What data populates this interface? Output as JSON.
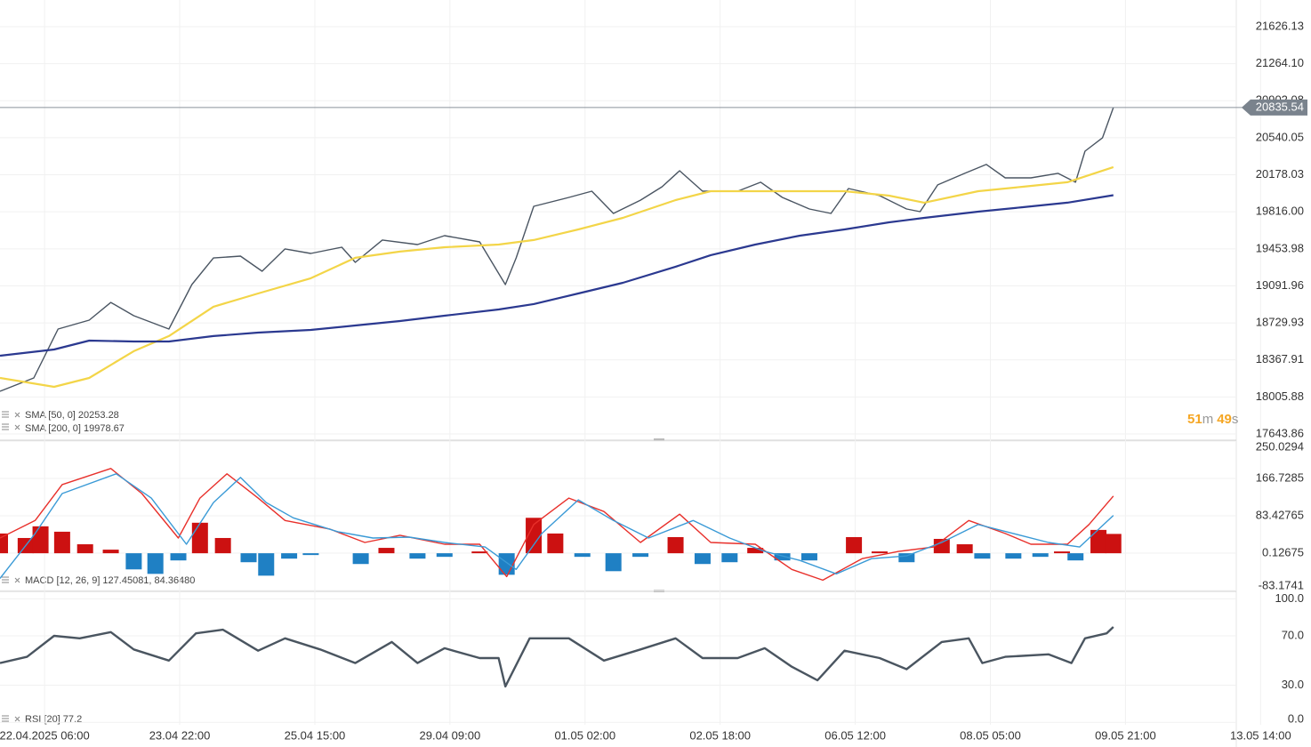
{
  "chart_data": [
    {
      "type": "line",
      "ylim": [
        17583,
        21887
      ],
      "yticks": [
        21626.13,
        {
          "value": 21264.1,
          "label": "21264.10"
        },
        20902.08,
        20540.05,
        20178.03,
        {
          "value": 19816,
          "label": "19816.00"
        },
        19453.98,
        19091.96,
        18729.93,
        18367.91,
        18005.88,
        17643.86
      ],
      "last_value": 20835.54,
      "legend": [
        "SMA [50, 0] 20253.28",
        "SMA [200, 0] 19978.67"
      ],
      "timer": [
        "51",
        "m",
        "49",
        "s"
      ],
      "series": [
        {
          "color": "#4a5562",
          "x": [
            -0.33,
            -0.08,
            0.1,
            0.33,
            0.49,
            0.66,
            0.92,
            1.09,
            1.25,
            1.45,
            1.61,
            1.78,
            1.97,
            2.2,
            2.3,
            2.5,
            2.76,
            2.96,
            3.22,
            3.41,
            3.49,
            3.62,
            3.88,
            4.05,
            4.21,
            4.41,
            4.57,
            4.7,
            4.87,
            5.13,
            5.3,
            5.46,
            5.66,
            5.82,
            5.95,
            6.18,
            6.38,
            6.48,
            6.61,
            6.81,
            6.97,
            7.11,
            7.3,
            7.5,
            7.63,
            7.7,
            7.83,
            7.91
          ],
          "values": [
            18061,
            18192,
            18670,
            18757,
            18930,
            18800,
            18670,
            19105,
            19365,
            19383,
            19235,
            19453,
            19409,
            19470,
            19322,
            19540,
            19496,
            19583,
            19522,
            19105,
            19365,
            19870,
            19957,
            20018,
            19800,
            19930,
            20061,
            20218,
            20018,
            20018,
            20105,
            19957,
            19844,
            19800,
            20044,
            19974,
            19844,
            19818,
            20079,
            20192,
            20279,
            20148,
            20148,
            20192,
            20105,
            20409,
            20540,
            20835.54
          ]
        },
        {
          "color": "#f3d548",
          "x": [
            -0.33,
            0.07,
            0.33,
            0.66,
            0.92,
            1.25,
            1.58,
            1.97,
            2.3,
            2.63,
            2.96,
            3.36,
            3.62,
            3.95,
            4.28,
            4.67,
            4.93,
            5.26,
            5.59,
            5.92,
            6.25,
            6.51,
            6.91,
            7.24,
            7.57,
            7.91
          ],
          "values": [
            18192,
            18105,
            18192,
            18453,
            18601,
            18888,
            19018,
            19166,
            19366,
            19427,
            19470,
            19496,
            19540,
            19644,
            19757,
            19931,
            20018,
            20018,
            20018,
            20018,
            19974,
            19905,
            20018,
            20061,
            20105,
            20253.28
          ]
        },
        {
          "color": "#2b3990",
          "x": [
            -0.33,
            0.07,
            0.33,
            0.66,
            0.92,
            1.25,
            1.58,
            1.97,
            2.3,
            2.63,
            2.96,
            3.36,
            3.62,
            3.95,
            4.28,
            4.67,
            4.93,
            5.26,
            5.59,
            5.92,
            6.25,
            6.51,
            6.91,
            7.24,
            7.57,
            7.91
          ],
          "values": [
            18409,
            18470,
            18557,
            18548,
            18548,
            18601,
            18635,
            18661,
            18705,
            18748,
            18800,
            18861,
            18914,
            19018,
            19122,
            19279,
            19392,
            19496,
            19583,
            19644,
            19713,
            19757,
            19818,
            19861,
            19905,
            19978.67
          ]
        }
      ]
    },
    {
      "type": "macd",
      "ylim": [
        -85,
        252
      ],
      "yticks": [
        250.0294,
        166.7285,
        83.42765,
        0.12675,
        -83.1741
      ],
      "legend": [
        "MACD [12, 26, 9] 127.45081,  84.36480"
      ],
      "histogram": {
        "pos_color": "#cc1111",
        "neg_color": "#1f80c4",
        "x": [
          -0.33,
          -0.14,
          -0.03,
          0.13,
          0.3,
          0.49,
          0.66,
          0.82,
          0.99,
          1.15,
          1.32,
          1.51,
          1.64,
          1.81,
          1.97,
          2.17,
          2.34,
          2.53,
          2.76,
          2.96,
          3.22,
          3.42,
          3.62,
          3.78,
          3.98,
          4.21,
          4.41,
          4.67,
          4.87,
          5.07,
          5.26,
          5.46,
          5.66,
          5.99,
          6.18,
          6.38,
          6.64,
          6.81,
          6.94,
          7.17,
          7.37,
          7.53,
          7.63,
          7.8,
          7.91
        ],
        "values": [
          44,
          34,
          60,
          48,
          20,
          8,
          -36,
          -46,
          -16,
          68,
          34,
          -20,
          -50,
          -12,
          -4,
          0,
          -24,
          12,
          -12,
          -8,
          4,
          -48,
          79,
          44,
          -8,
          -40,
          -8,
          36,
          -24,
          -20,
          12,
          -16,
          -16,
          36,
          4,
          -20,
          32,
          20,
          -12,
          -12,
          -8,
          4,
          -16,
          52,
          43.09
        ]
      },
      "series": [
        {
          "color": "#e8302b",
          "x": [
            -0.33,
            -0.07,
            0.13,
            0.49,
            0.72,
            0.99,
            1.15,
            1.35,
            1.58,
            1.78,
            2.11,
            2.37,
            2.63,
            2.96,
            3.22,
            3.42,
            3.62,
            3.88,
            4.14,
            4.41,
            4.7,
            4.93,
            5.26,
            5.53,
            5.76,
            6.05,
            6.32,
            6.58,
            6.84,
            7.11,
            7.3,
            7.57,
            7.73,
            7.91
          ],
          "values": [
            34,
            73,
            153,
            189,
            133,
            34,
            123,
            177,
            123,
            73,
            54,
            24,
            40,
            20,
            20,
            -52,
            64,
            123,
            93,
            24,
            87,
            24,
            20,
            -36,
            -60,
            -12,
            4,
            14,
            73,
            44,
            20,
            20,
            64,
            127.45081
          ]
        },
        {
          "color": "#3a9ad6",
          "x": [
            -0.33,
            -0.07,
            0.13,
            0.53,
            0.79,
            1.05,
            1.25,
            1.45,
            1.64,
            1.84,
            2.17,
            2.43,
            2.7,
            2.96,
            3.26,
            3.49,
            3.68,
            3.95,
            4.21,
            4.47,
            4.8,
            5.07,
            5.33,
            5.59,
            5.86,
            6.12,
            6.38,
            6.64,
            6.91,
            7.17,
            7.43,
            7.66,
            7.91
          ],
          "values": [
            -56,
            44,
            133,
            177,
            123,
            20,
            113,
            169,
            113,
            79,
            48,
            34,
            36,
            24,
            14,
            -36,
            44,
            119,
            73,
            34,
            73,
            34,
            4,
            -16,
            -46,
            -12,
            -6,
            24,
            64,
            44,
            24,
            14,
            84.3648
          ]
        }
      ]
    },
    {
      "type": "line",
      "ylim": [
        -2,
        106
      ],
      "yticks": [
        {
          "value": 100,
          "label": "100.0"
        },
        {
          "value": 70,
          "label": "70.0"
        },
        {
          "value": 30,
          "label": "30.0"
        },
        {
          "value": 0,
          "label": "0.0"
        }
      ],
      "xlim": [
        -0.33,
        8.82
      ],
      "xticks": [
        {
          "value": 0,
          "label": "22.04.2025 06:00"
        },
        {
          "value": 1,
          "label": "23.04 22:00"
        },
        {
          "value": 2,
          "label": "25.04 15:00"
        },
        {
          "value": 3,
          "label": "29.04 09:00"
        },
        {
          "value": 4,
          "label": "01.05 02:00"
        },
        {
          "value": 5,
          "label": "02.05 18:00"
        },
        {
          "value": 6,
          "label": "06.05 12:00"
        },
        {
          "value": 7,
          "label": "08.05 05:00"
        },
        {
          "value": 8,
          "label": "09.05 21:00"
        },
        {
          "value": 9,
          "label": "13.05 14:00"
        }
      ],
      "legend": [
        "RSI [20] 77.2"
      ],
      "series": [
        {
          "color": "#4a5560",
          "x": [
            -0.33,
            -0.13,
            0.07,
            0.26,
            0.49,
            0.66,
            0.92,
            1.12,
            1.32,
            1.58,
            1.78,
            2.04,
            2.3,
            2.57,
            2.76,
            2.96,
            3.22,
            3.36,
            3.41,
            3.59,
            3.88,
            4.14,
            4.41,
            4.67,
            4.87,
            5.13,
            5.33,
            5.53,
            5.72,
            5.92,
            6.18,
            6.38,
            6.64,
            6.84,
            6.94,
            7.11,
            7.43,
            7.6,
            7.7,
            7.86,
            7.91
          ],
          "values": [
            48,
            53,
            70,
            68,
            73,
            59,
            50,
            72,
            75,
            58,
            68,
            59,
            48,
            65,
            48,
            60,
            52,
            52,
            29,
            68,
            68,
            50,
            59,
            68,
            52,
            52,
            60,
            45,
            34,
            58,
            52,
            43,
            65,
            68,
            48,
            53,
            55,
            48,
            68,
            72,
            77.2
          ]
        }
      ]
    }
  ]
}
